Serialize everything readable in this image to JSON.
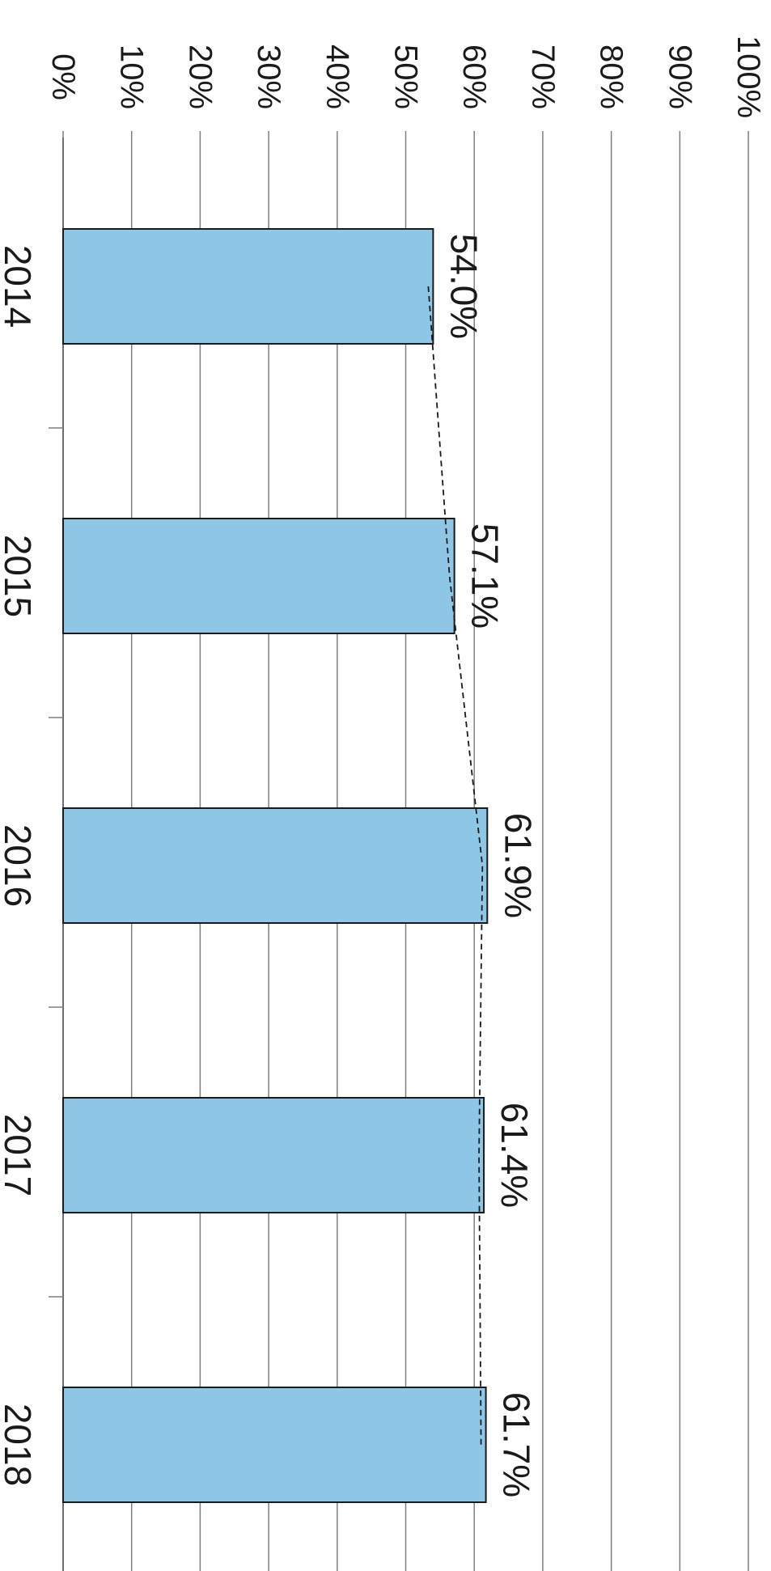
{
  "chart_data": {
    "type": "bar",
    "orientation": "rotated-90-clockwise",
    "categories": [
      "2014",
      "2015",
      "2016",
      "2017",
      "2018"
    ],
    "values": [
      54.0,
      57.1,
      61.9,
      61.4,
      61.7
    ],
    "data_labels": [
      "54.0%",
      "57.1%",
      "61.9%",
      "61.4%",
      "61.7%"
    ],
    "ylim": [
      0,
      100
    ],
    "y_ticks": [
      "0%",
      "10%",
      "20%",
      "30%",
      "40%",
      "50%",
      "60%",
      "70%",
      "80%",
      "90%",
      "100%"
    ],
    "grid": true,
    "trend_line": "dashed",
    "colors": {
      "bar": "#8ec6e6",
      "bar_stroke": "#1a1a1a",
      "grid": "#7f7f7f",
      "trend": "#1a1a1a"
    }
  }
}
